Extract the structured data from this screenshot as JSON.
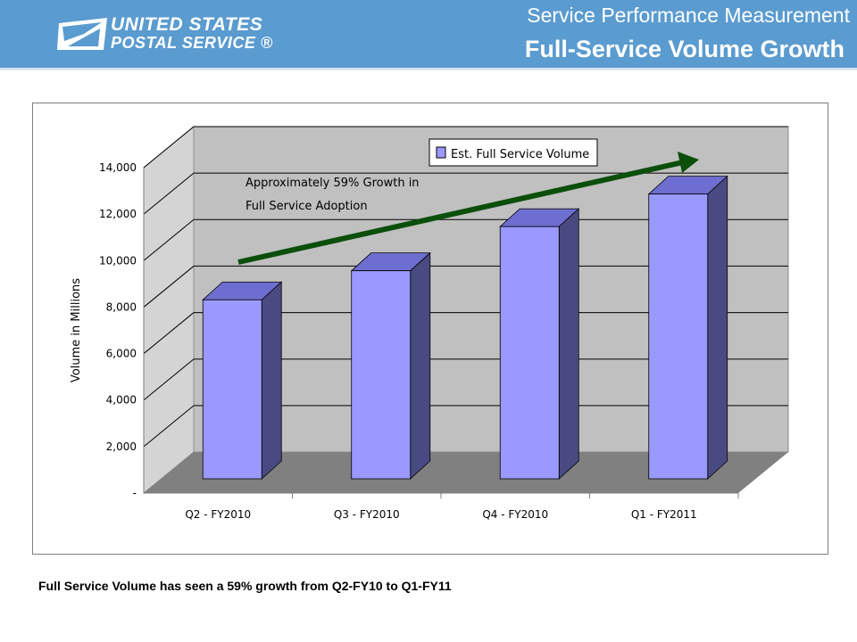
{
  "header": {
    "logo_line1": "UNITED STATES",
    "logo_line2": "POSTAL SERVICE ®",
    "subtitle": "Service Performance Measurement",
    "title": "Full-Service Volume Growth"
  },
  "colors": {
    "header": "#5a9bd0",
    "bar_front": "#9999ff",
    "bar_side": "#4a4a82",
    "bar_top": "#6e6ed0",
    "plot_wall": "#c0c0c0",
    "plot_floor": "#808080",
    "arrow": "#0b4f0b"
  },
  "chart_data": {
    "type": "bar",
    "title": "",
    "xlabel": "",
    "ylabel": "Volume in Millions",
    "ylim": [
      0,
      14000
    ],
    "yticks": [
      0,
      2000,
      4000,
      6000,
      8000,
      10000,
      12000,
      14000
    ],
    "ytick_labels": [
      "-",
      "2,000",
      "4,000",
      "6,000",
      "8,000",
      "10,000",
      "12,000",
      "14,000"
    ],
    "categories": [
      "Q2 - FY2010",
      "Q3 - FY2010",
      "Q4 - FY2010",
      "Q1 - FY2011"
    ],
    "series": [
      {
        "name": "Est. Full Service Volume",
        "values": [
          7700,
          8950,
          10850,
          12250
        ]
      }
    ],
    "legend": "top-center",
    "grid": true,
    "three_d": true,
    "annotation": {
      "line1": "Approximately 59% Growth in",
      "line2": "Full Service Adoption"
    }
  },
  "footnote": "Full Service Volume has seen a 59% growth from Q2-FY10 to Q1-FY11"
}
